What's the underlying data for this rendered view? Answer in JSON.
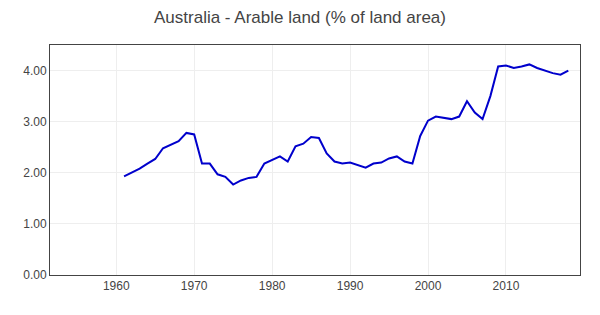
{
  "chart_data": {
    "type": "line",
    "title": "Australia - Arable land (% of land area)",
    "color": "#0000CC",
    "x": [
      1961,
      1962,
      1963,
      1964,
      1965,
      1966,
      1967,
      1968,
      1969,
      1970,
      1971,
      1972,
      1973,
      1974,
      1975,
      1976,
      1977,
      1978,
      1979,
      1980,
      1981,
      1982,
      1983,
      1984,
      1985,
      1986,
      1987,
      1988,
      1989,
      1990,
      1991,
      1992,
      1993,
      1994,
      1995,
      1996,
      1997,
      1998,
      1999,
      2000,
      2001,
      2002,
      2003,
      2004,
      2005,
      2006,
      2007,
      2008,
      2009,
      2010,
      2011,
      2012,
      2013,
      2014,
      2015,
      2016,
      2017,
      2018
    ],
    "values": [
      1.93,
      2.0,
      2.08,
      2.18,
      2.27,
      2.48,
      2.55,
      2.62,
      2.78,
      2.75,
      2.18,
      2.18,
      1.97,
      1.92,
      1.77,
      1.85,
      1.9,
      1.92,
      2.18,
      2.25,
      2.32,
      2.22,
      2.52,
      2.57,
      2.7,
      2.68,
      2.38,
      2.22,
      2.18,
      2.2,
      2.15,
      2.1,
      2.18,
      2.2,
      2.28,
      2.32,
      2.22,
      2.18,
      2.72,
      3.02,
      3.1,
      3.07,
      3.05,
      3.1,
      3.4,
      3.18,
      3.05,
      3.5,
      4.08,
      4.1,
      4.05,
      4.08,
      4.12,
      4.05,
      4.0,
      3.95,
      3.92,
      4.0
    ],
    "xlim": [
      1951.5,
      2019.5
    ],
    "xticks": [
      1960,
      1970,
      1980,
      1990,
      2000,
      2010
    ],
    "ylim": [
      0,
      4.5
    ],
    "yticks": [
      {
        "value": 0.0,
        "label": "0.00"
      },
      {
        "value": 1.0,
        "label": "1.00"
      },
      {
        "value": 2.0,
        "label": "2.00"
      },
      {
        "value": 3.0,
        "label": "3.00"
      },
      {
        "value": 4.0,
        "label": "4.00"
      }
    ],
    "grid": true
  }
}
